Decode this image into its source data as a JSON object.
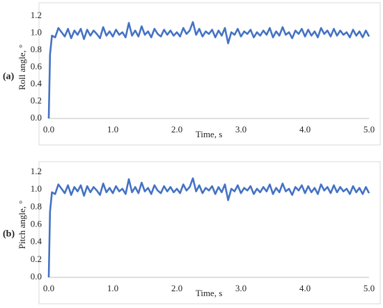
{
  "chart_data": [
    {
      "type": "line",
      "panel_label": "(a)",
      "ylabel": "Roll angle, °",
      "xlabel": "Time, s",
      "x": [
        0,
        0.02,
        0.05,
        0.1,
        0.15,
        0.2,
        0.25,
        0.3,
        0.35,
        0.4,
        0.45,
        0.5,
        0.55,
        0.6,
        0.65,
        0.7,
        0.75,
        0.8,
        0.85,
        0.9,
        0.95,
        1.0,
        1.05,
        1.1,
        1.15,
        1.2,
        1.25,
        1.3,
        1.35,
        1.4,
        1.45,
        1.5,
        1.55,
        1.6,
        1.65,
        1.7,
        1.75,
        1.8,
        1.85,
        1.9,
        1.95,
        2.0,
        2.05,
        2.1,
        2.15,
        2.2,
        2.25,
        2.3,
        2.35,
        2.4,
        2.45,
        2.5,
        2.55,
        2.6,
        2.65,
        2.7,
        2.75,
        2.8,
        2.85,
        2.9,
        2.95,
        3.0,
        3.05,
        3.1,
        3.15,
        3.2,
        3.25,
        3.3,
        3.35,
        3.4,
        3.45,
        3.5,
        3.55,
        3.6,
        3.65,
        3.7,
        3.75,
        3.8,
        3.85,
        3.9,
        3.95,
        4.0,
        4.05,
        4.1,
        4.15,
        4.2,
        4.25,
        4.3,
        4.35,
        4.4,
        4.45,
        4.5,
        4.55,
        4.6,
        4.65,
        4.7,
        4.75,
        4.8,
        4.85,
        4.9,
        4.95,
        5.0
      ],
      "series": [
        {
          "name": "Roll angle",
          "color": "#4472c4",
          "values": [
            0,
            0.75,
            0.97,
            0.95,
            1.06,
            1.01,
            0.96,
            1.05,
            0.94,
            1.03,
            0.98,
            1.05,
            0.93,
            1.04,
            0.97,
            1.03,
            0.99,
            0.94,
            1.07,
            0.97,
            1.02,
            0.96,
            1.04,
            0.98,
            1.01,
            0.95,
            1.12,
            0.97,
            1.03,
            0.96,
            1.08,
            0.98,
            1.02,
            0.95,
            1.05,
            0.99,
            0.96,
            1.04,
            0.98,
            1.03,
            0.97,
            1.01,
            0.96,
            1.06,
            0.99,
            1.03,
            1.13,
            0.98,
            1.05,
            0.96,
            1.02,
            0.99,
            1.04,
            0.95,
            1.03,
            0.97,
            1.06,
            0.88,
            1.01,
            0.98,
            1.05,
            0.96,
            1.02,
            0.99,
            1.04,
            0.95,
            1.01,
            0.97,
            1.03,
            0.98,
            1.06,
            0.95,
            1.02,
            0.97,
            1.07,
            0.98,
            1.01,
            0.94,
            1.03,
            0.99,
            1.05,
            0.96,
            1.04,
            0.97,
            1.02,
            0.95,
            1.06,
            0.99,
            1.03,
            0.96,
            1.05,
            0.97,
            1.03,
            0.98,
            1.01,
            0.95,
            1.04,
            0.97,
            1.02,
            0.95,
            1.03,
            0.96
          ]
        }
      ],
      "xlim": [
        0,
        5
      ],
      "ylim": [
        0,
        1.2
      ],
      "xticks": [
        {
          "value": 0,
          "label": "0.0"
        },
        {
          "value": 1,
          "label": "1.0"
        },
        {
          "value": 2,
          "label": "2.0"
        },
        {
          "value": 3,
          "label": "3.0"
        },
        {
          "value": 4,
          "label": "4.0"
        },
        {
          "value": 5,
          "label": "5.0"
        }
      ],
      "yticks": [
        {
          "value": 0,
          "label": "0.0"
        },
        0.2,
        0.4,
        0.6,
        0.8,
        {
          "value": 1,
          "label": "1.0"
        },
        1.2
      ]
    },
    {
      "type": "line",
      "panel_label": "(b)",
      "ylabel": "Pitch angle, °",
      "xlabel": "Time, s",
      "x": [
        0,
        0.02,
        0.05,
        0.1,
        0.15,
        0.2,
        0.25,
        0.3,
        0.35,
        0.4,
        0.45,
        0.5,
        0.55,
        0.6,
        0.65,
        0.7,
        0.75,
        0.8,
        0.85,
        0.9,
        0.95,
        1.0,
        1.05,
        1.1,
        1.15,
        1.2,
        1.25,
        1.3,
        1.35,
        1.4,
        1.45,
        1.5,
        1.55,
        1.6,
        1.65,
        1.7,
        1.75,
        1.8,
        1.85,
        1.9,
        1.95,
        2.0,
        2.05,
        2.1,
        2.15,
        2.2,
        2.25,
        2.3,
        2.35,
        2.4,
        2.45,
        2.5,
        2.55,
        2.6,
        2.65,
        2.7,
        2.75,
        2.8,
        2.85,
        2.9,
        2.95,
        3.0,
        3.05,
        3.1,
        3.15,
        3.2,
        3.25,
        3.3,
        3.35,
        3.4,
        3.45,
        3.5,
        3.55,
        3.6,
        3.65,
        3.7,
        3.75,
        3.8,
        3.85,
        3.9,
        3.95,
        4.0,
        4.05,
        4.1,
        4.15,
        4.2,
        4.25,
        4.3,
        4.35,
        4.4,
        4.45,
        4.5,
        4.55,
        4.6,
        4.65,
        4.7,
        4.75,
        4.8,
        4.85,
        4.9,
        4.95,
        5.0
      ],
      "series": [
        {
          "name": "Pitch angle",
          "color": "#4472c4",
          "values": [
            0,
            0.75,
            0.97,
            0.95,
            1.06,
            1.01,
            0.96,
            1.05,
            0.94,
            1.03,
            0.98,
            1.05,
            0.93,
            1.04,
            0.97,
            1.03,
            0.99,
            0.94,
            1.07,
            0.97,
            1.02,
            0.96,
            1.04,
            0.98,
            1.01,
            0.95,
            1.12,
            0.97,
            1.03,
            0.96,
            1.08,
            0.98,
            1.02,
            0.95,
            1.05,
            0.99,
            0.96,
            1.04,
            0.98,
            1.03,
            0.97,
            1.01,
            0.96,
            1.06,
            0.99,
            1.03,
            1.13,
            0.98,
            1.05,
            0.96,
            1.02,
            0.99,
            1.04,
            0.95,
            1.03,
            0.97,
            1.06,
            0.88,
            1.01,
            0.98,
            1.05,
            0.96,
            1.02,
            0.99,
            1.04,
            0.95,
            1.01,
            0.97,
            1.03,
            0.98,
            1.06,
            0.95,
            1.02,
            0.97,
            1.07,
            0.98,
            1.01,
            0.94,
            1.03,
            0.99,
            1.05,
            0.96,
            1.04,
            0.97,
            1.02,
            0.95,
            1.06,
            0.99,
            1.03,
            0.96,
            1.05,
            0.97,
            1.03,
            0.98,
            1.01,
            0.95,
            1.04,
            0.97,
            1.02,
            0.95,
            1.03,
            0.96
          ]
        }
      ],
      "xlim": [
        0,
        5
      ],
      "ylim": [
        0,
        1.2
      ],
      "xticks": [
        {
          "value": 0,
          "label": "0.0"
        },
        {
          "value": 1,
          "label": "1.0"
        },
        {
          "value": 2,
          "label": "2.0"
        },
        {
          "value": 3,
          "label": "3.0"
        },
        {
          "value": 4,
          "label": "4.0"
        },
        {
          "value": 5,
          "label": "5.0"
        }
      ],
      "yticks": [
        {
          "value": 0,
          "label": "0.0"
        },
        0.2,
        0.4,
        0.6,
        0.8,
        {
          "value": 1,
          "label": "1.0"
        },
        1.2
      ]
    }
  ]
}
